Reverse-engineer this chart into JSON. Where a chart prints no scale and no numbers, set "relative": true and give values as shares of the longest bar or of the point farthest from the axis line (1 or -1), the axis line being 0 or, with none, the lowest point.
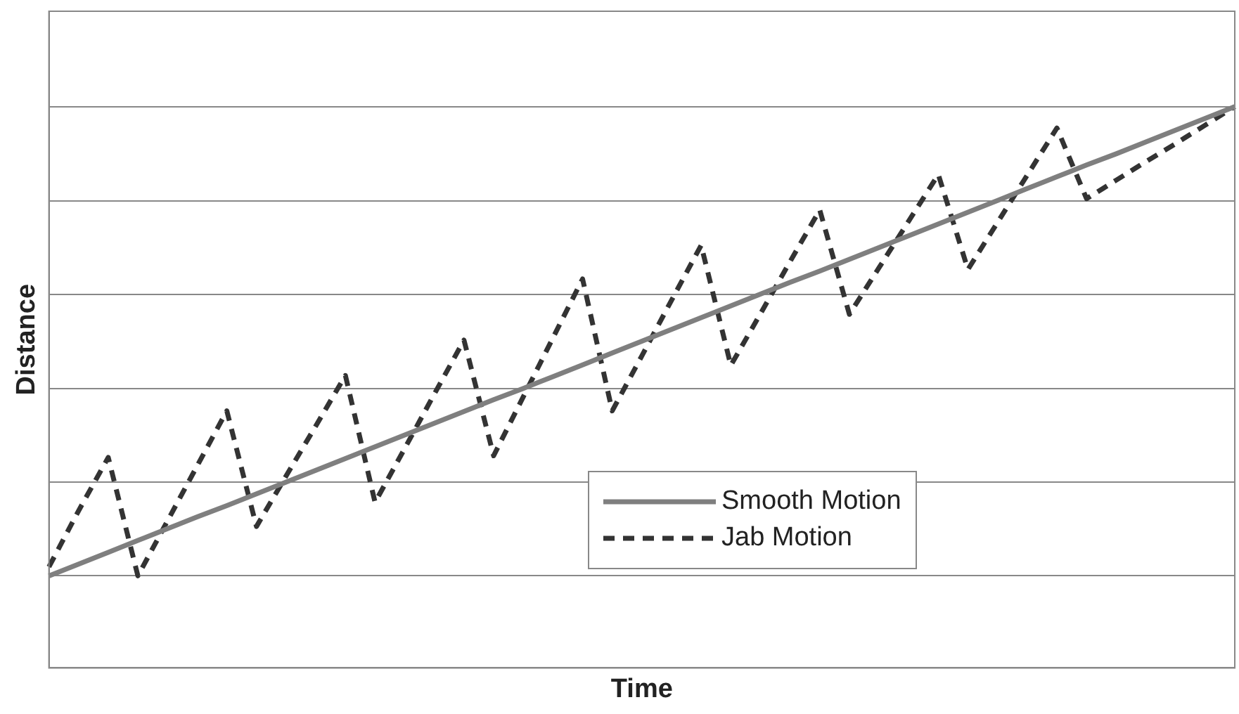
{
  "chart_data": {
    "type": "line",
    "xlabel": "Time",
    "ylabel": "Distance",
    "relative": true,
    "grid": "y",
    "legend": "bottom right",
    "marker": "none",
    "categories": [
      null,
      null,
      null,
      null,
      null,
      null,
      null,
      null,
      null,
      null,
      null,
      null,
      null,
      null,
      null,
      null,
      null,
      null,
      null,
      null,
      null,
      null,
      null,
      null,
      null,
      null,
      null,
      null,
      null,
      null,
      null,
      null,
      null,
      null,
      null,
      null,
      null,
      null,
      null,
      null,
      null
    ],
    "series": [
      {
        "name": "Smooth Motion",
        "color": "#7f7f7f",
        "line_style": "solid",
        "values": [
          0.164,
          0.185,
          0.206,
          0.227,
          0.248,
          0.269,
          0.289,
          0.31,
          0.331,
          0.352,
          0.373,
          0.394,
          0.415,
          0.436,
          0.457,
          0.478,
          0.498,
          0.519,
          0.54,
          0.561,
          0.582,
          0.603,
          0.624,
          0.645,
          0.666,
          0.687,
          0.707,
          0.728,
          0.749,
          0.77,
          0.791,
          0.812,
          0.833,
          0.854,
          0.875,
          0.896,
          0.916,
          0.937,
          0.958,
          0.979,
          1.0
        ]
      },
      {
        "name": "Jab Motion",
        "color": "#333333",
        "line_style": "dashed",
        "values": [
          0.18,
          0.28,
          0.375,
          0.164,
          0.262,
          0.36,
          0.458,
          0.252,
          0.342,
          0.431,
          0.521,
          0.295,
          0.391,
          0.488,
          0.584,
          0.378,
          0.483,
          0.588,
          0.693,
          0.458,
          0.556,
          0.655,
          0.753,
          0.539,
          0.631,
          0.724,
          0.816,
          0.63,
          0.713,
          0.796,
          0.879,
          0.71,
          0.794,
          0.878,
          0.962,
          0.836,
          0.869,
          0.902,
          0.934,
          0.967,
          1.0
        ]
      }
    ]
  }
}
